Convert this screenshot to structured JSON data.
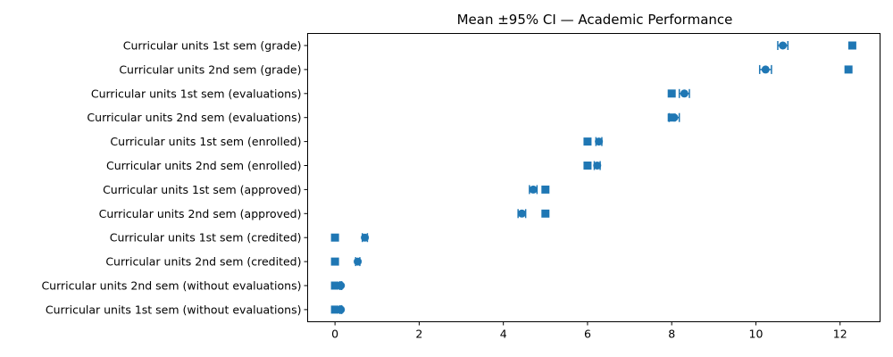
{
  "chart_data": {
    "type": "scatter",
    "title": "Mean ±95% CI — Academic Performance",
    "xlabel": "",
    "ylabel": "",
    "xlim": [
      -0.65,
      12.95
    ],
    "xticks": [
      0,
      2,
      4,
      6,
      8,
      10,
      12
    ],
    "grid": false,
    "categories": [
      "Curricular units 1st sem (grade)",
      "Curricular units 2nd sem (grade)",
      "Curricular units 1st sem (evaluations)",
      "Curricular units 2nd sem (evaluations)",
      "Curricular units 1st sem (enrolled)",
      "Curricular units 2nd sem (enrolled)",
      "Curricular units 1st sem (approved)",
      "Curricular units 2nd sem (approved)",
      "Curricular units 1st sem (credited)",
      "Curricular units 2nd sem (credited)",
      "Curricular units 2nd sem (without evaluations)",
      "Curricular units 1st sem (without evaluations)"
    ],
    "series": [
      {
        "marker": "circle",
        "values": [
          10.64,
          10.23,
          8.3,
          8.06,
          6.27,
          6.23,
          4.71,
          4.44,
          0.71,
          0.54,
          0.14,
          0.14
        ],
        "ci_low": [
          10.52,
          10.09,
          8.18,
          7.94,
          6.2,
          6.16,
          4.62,
          4.35,
          0.65,
          0.49,
          0.12,
          0.12
        ],
        "ci_high": [
          10.76,
          10.37,
          8.42,
          8.18,
          6.34,
          6.3,
          4.8,
          4.53,
          0.77,
          0.59,
          0.16,
          0.16
        ]
      },
      {
        "marker": "square",
        "values": [
          12.29,
          12.2,
          8.0,
          8.0,
          6.0,
          6.0,
          5.0,
          5.0,
          0.0,
          0.0,
          0.0,
          0.0
        ]
      }
    ],
    "color": "#1f77b4"
  }
}
